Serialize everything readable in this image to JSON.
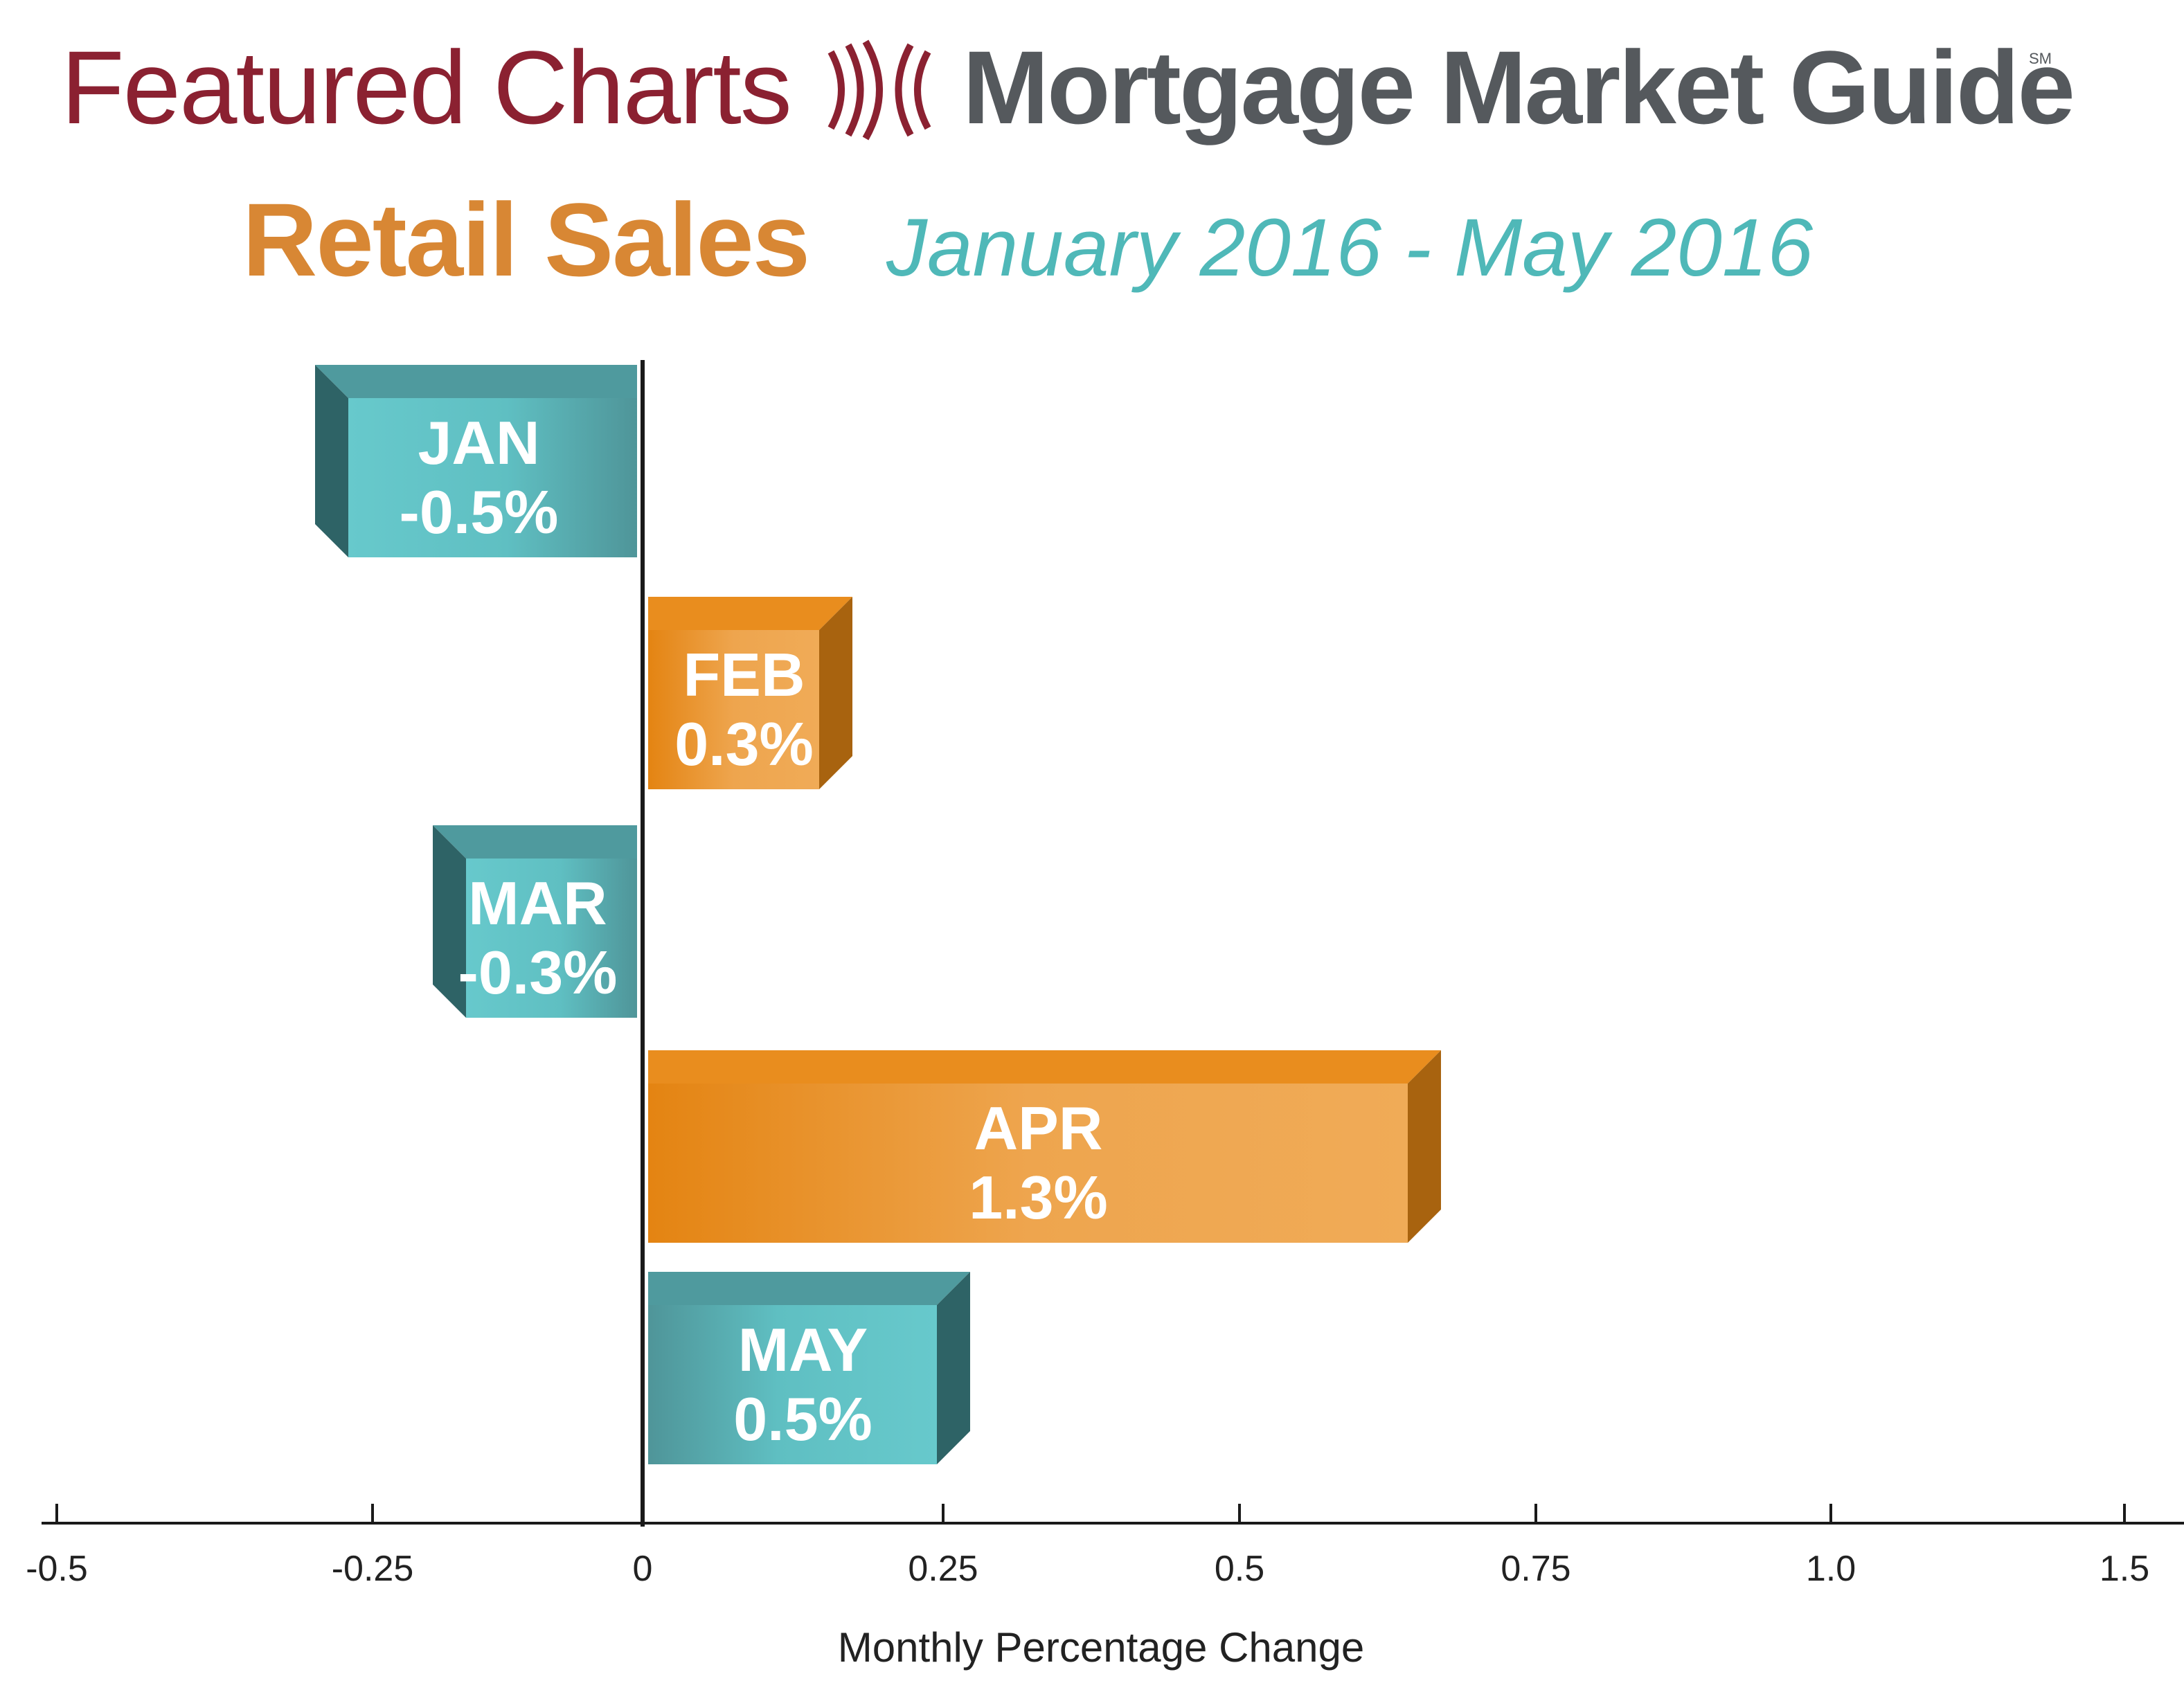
{
  "header": {
    "left_brand": "Featured Charts",
    "right_brand": "Mortgage Market Guide",
    "service_mark": "SM",
    "title": "Retail Sales",
    "subtitle": "January 2016 - May 2016"
  },
  "colors": {
    "brand_red": "#8b2131",
    "brand_gray": "#55595d",
    "title_orange": "#d88734",
    "subtitle_teal": "#4fb8b8",
    "teal_bar": "#63c7ca",
    "orange_bar": "#e98d1e"
  },
  "chart_data": {
    "type": "bar",
    "orientation": "horizontal",
    "categories": [
      "JAN",
      "FEB",
      "MAR",
      "APR",
      "MAY"
    ],
    "values": [
      -0.5,
      0.3,
      -0.3,
      1.3,
      0.5
    ],
    "value_labels": [
      "-0.5%",
      "0.3%",
      "-0.3%",
      "1.3%",
      "0.5%"
    ],
    "xlabel": "Monthly Percentage Change",
    "ticks": [
      -0.5,
      -0.25,
      0,
      0.25,
      0.5,
      0.75,
      1.0,
      1.5
    ],
    "tick_labels": [
      "-0.5",
      "-0.25",
      "0",
      "0.25",
      "0.5",
      "0.75",
      "1.0",
      "1.5"
    ],
    "xlim": [
      -0.5,
      1.5
    ],
    "grid": false,
    "legend": "none"
  }
}
